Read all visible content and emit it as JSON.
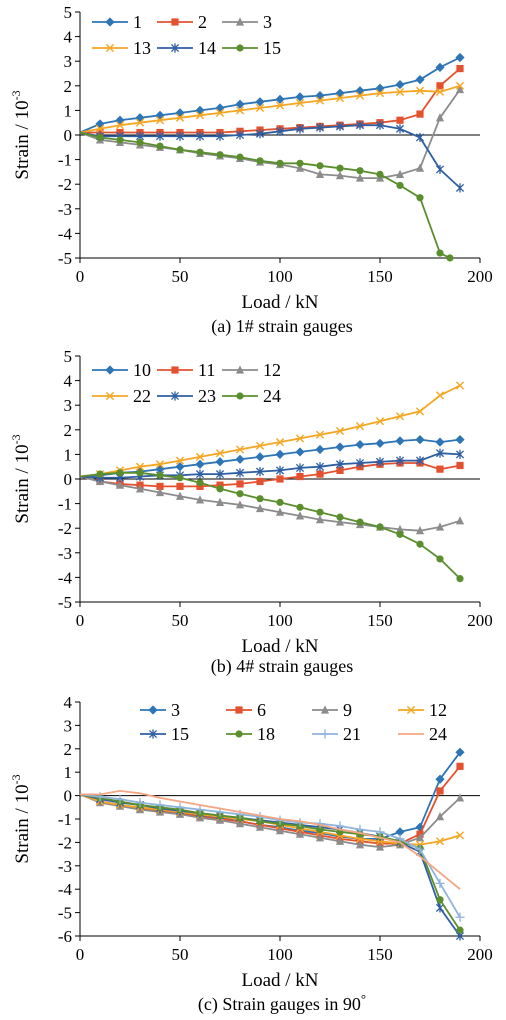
{
  "chart_data": [
    {
      "type": "line",
      "caption": "(a) 1# strain gauges",
      "xlabel": "Load / kN",
      "ylabel_main": "Strain / 10",
      "ylabel_exp": "-3",
      "xlim": [
        0,
        200
      ],
      "ylim": [
        -5,
        5
      ],
      "xticks": [
        0,
        50,
        100,
        150,
        200
      ],
      "yticks": [
        -5,
        -4,
        -3,
        -2,
        -1,
        0,
        1,
        2,
        3,
        4,
        5
      ],
      "legend_cols": 3,
      "grid": false,
      "series": [
        {
          "name": "1",
          "color": "#2e75b6",
          "marker": "diamond",
          "x": [
            0,
            10,
            20,
            30,
            40,
            50,
            60,
            70,
            80,
            90,
            100,
            110,
            120,
            130,
            140,
            150,
            160,
            170,
            180,
            190
          ],
          "y": [
            0.1,
            0.45,
            0.6,
            0.7,
            0.8,
            0.9,
            1.0,
            1.1,
            1.25,
            1.35,
            1.45,
            1.55,
            1.6,
            1.7,
            1.8,
            1.9,
            2.05,
            2.25,
            2.75,
            3.15
          ]
        },
        {
          "name": "2",
          "color": "#e4512f",
          "marker": "square",
          "x": [
            0,
            10,
            20,
            30,
            40,
            50,
            60,
            70,
            80,
            90,
            100,
            110,
            120,
            130,
            140,
            150,
            160,
            170,
            180,
            190
          ],
          "y": [
            0.1,
            0.1,
            0.1,
            0.1,
            0.1,
            0.1,
            0.1,
            0.1,
            0.15,
            0.2,
            0.25,
            0.3,
            0.35,
            0.4,
            0.45,
            0.5,
            0.6,
            0.85,
            2.0,
            2.7
          ]
        },
        {
          "name": "3",
          "color": "#8c8c8c",
          "marker": "triangle",
          "x": [
            0,
            10,
            20,
            30,
            40,
            50,
            60,
            70,
            80,
            90,
            100,
            110,
            120,
            130,
            140,
            150,
            160,
            170,
            180,
            190
          ],
          "y": [
            0.1,
            -0.2,
            -0.3,
            -0.4,
            -0.5,
            -0.6,
            -0.75,
            -0.85,
            -0.95,
            -1.1,
            -1.2,
            -1.35,
            -1.6,
            -1.65,
            -1.75,
            -1.75,
            -1.6,
            -1.35,
            0.7,
            1.85
          ]
        },
        {
          "name": "13",
          "color": "#f5a623",
          "marker": "x",
          "x": [
            0,
            10,
            20,
            30,
            40,
            50,
            60,
            70,
            80,
            90,
            100,
            110,
            120,
            130,
            140,
            150,
            160,
            170,
            180,
            190
          ],
          "y": [
            0.1,
            0.25,
            0.4,
            0.5,
            0.6,
            0.7,
            0.8,
            0.9,
            1.0,
            1.1,
            1.2,
            1.3,
            1.4,
            1.5,
            1.6,
            1.7,
            1.75,
            1.8,
            1.75,
            2.0
          ]
        },
        {
          "name": "14",
          "color": "#2e5fa3",
          "marker": "star",
          "x": [
            0,
            10,
            20,
            30,
            40,
            50,
            60,
            70,
            80,
            90,
            100,
            110,
            120,
            130,
            140,
            150,
            160,
            170,
            180,
            190
          ],
          "y": [
            0.1,
            -0.05,
            -0.05,
            -0.05,
            -0.05,
            -0.05,
            -0.05,
            -0.05,
            0.0,
            0.05,
            0.15,
            0.25,
            0.3,
            0.35,
            0.4,
            0.4,
            0.25,
            -0.1,
            -1.4,
            -2.15
          ]
        },
        {
          "name": "15",
          "color": "#5b8f2e",
          "marker": "circle",
          "x": [
            0,
            10,
            20,
            30,
            40,
            50,
            60,
            70,
            80,
            90,
            100,
            110,
            120,
            130,
            140,
            150,
            160,
            170,
            180,
            185
          ],
          "y": [
            0.1,
            -0.1,
            -0.2,
            -0.3,
            -0.45,
            -0.6,
            -0.7,
            -0.8,
            -0.9,
            -1.05,
            -1.15,
            -1.15,
            -1.25,
            -1.35,
            -1.45,
            -1.6,
            -2.05,
            -2.55,
            -4.8,
            -5.0
          ]
        }
      ]
    },
    {
      "type": "line",
      "caption": "(b) 4# strain gauges",
      "xlabel": "Load / kN",
      "ylabel_main": "Strain / 10",
      "ylabel_exp": "-3",
      "xlim": [
        0,
        200
      ],
      "ylim": [
        -5,
        5
      ],
      "xticks": [
        0,
        50,
        100,
        150,
        200
      ],
      "yticks": [
        -5,
        -4,
        -3,
        -2,
        -1,
        0,
        1,
        2,
        3,
        4,
        5
      ],
      "legend_cols": 3,
      "grid": false,
      "series": [
        {
          "name": "10",
          "color": "#2e75b6",
          "marker": "diamond",
          "x": [
            0,
            10,
            20,
            30,
            40,
            50,
            60,
            70,
            80,
            90,
            100,
            110,
            120,
            130,
            140,
            150,
            160,
            170,
            180,
            190
          ],
          "y": [
            0.1,
            0.15,
            0.25,
            0.3,
            0.4,
            0.5,
            0.6,
            0.7,
            0.8,
            0.9,
            1.0,
            1.1,
            1.2,
            1.3,
            1.4,
            1.45,
            1.55,
            1.6,
            1.5,
            1.6
          ]
        },
        {
          "name": "11",
          "color": "#e4512f",
          "marker": "square",
          "x": [
            0,
            10,
            20,
            30,
            40,
            50,
            60,
            70,
            80,
            90,
            100,
            110,
            120,
            130,
            140,
            150,
            160,
            170,
            180,
            190
          ],
          "y": [
            0.1,
            -0.1,
            -0.2,
            -0.25,
            -0.3,
            -0.3,
            -0.3,
            -0.25,
            -0.2,
            -0.1,
            0.0,
            0.1,
            0.2,
            0.35,
            0.5,
            0.6,
            0.65,
            0.65,
            0.4,
            0.55
          ]
        },
        {
          "name": "12",
          "color": "#8c8c8c",
          "marker": "triangle",
          "x": [
            0,
            10,
            20,
            30,
            40,
            50,
            60,
            70,
            80,
            90,
            100,
            110,
            120,
            130,
            140,
            150,
            160,
            170,
            180,
            190
          ],
          "y": [
            0.1,
            -0.1,
            -0.25,
            -0.4,
            -0.55,
            -0.7,
            -0.85,
            -0.95,
            -1.05,
            -1.2,
            -1.35,
            -1.5,
            -1.65,
            -1.75,
            -1.85,
            -1.95,
            -2.05,
            -2.1,
            -1.95,
            -1.7
          ]
        },
        {
          "name": "22",
          "color": "#f5a623",
          "marker": "x",
          "x": [
            0,
            10,
            20,
            30,
            40,
            50,
            60,
            70,
            80,
            90,
            100,
            110,
            120,
            130,
            140,
            150,
            160,
            170,
            180,
            190
          ],
          "y": [
            0.1,
            0.2,
            0.35,
            0.5,
            0.6,
            0.75,
            0.9,
            1.05,
            1.2,
            1.35,
            1.5,
            1.65,
            1.8,
            1.95,
            2.15,
            2.35,
            2.55,
            2.75,
            3.4,
            3.8
          ]
        },
        {
          "name": "23",
          "color": "#2e5fa3",
          "marker": "star",
          "x": [
            0,
            10,
            20,
            30,
            40,
            50,
            60,
            70,
            80,
            90,
            100,
            110,
            120,
            130,
            140,
            150,
            160,
            170,
            180,
            190
          ],
          "y": [
            0.1,
            0.05,
            0.05,
            0.1,
            0.15,
            0.15,
            0.2,
            0.2,
            0.25,
            0.3,
            0.35,
            0.45,
            0.5,
            0.6,
            0.65,
            0.7,
            0.75,
            0.75,
            1.05,
            1.0
          ]
        },
        {
          "name": "24",
          "color": "#5b8f2e",
          "marker": "circle",
          "x": [
            0,
            10,
            20,
            30,
            40,
            50,
            60,
            70,
            80,
            90,
            100,
            110,
            120,
            130,
            140,
            150,
            160,
            170,
            180,
            190
          ],
          "y": [
            0.1,
            0.2,
            0.25,
            0.25,
            0.15,
            0.05,
            -0.15,
            -0.4,
            -0.6,
            -0.8,
            -0.95,
            -1.15,
            -1.35,
            -1.55,
            -1.75,
            -1.95,
            -2.25,
            -2.65,
            -3.25,
            -4.05
          ]
        }
      ]
    },
    {
      "type": "line",
      "caption_main": "(c) Strain gauges in 90",
      "caption_sup": "°",
      "xlabel": "Load / kN",
      "ylabel_main": "Strain / 10",
      "ylabel_exp": "-3",
      "xlim": [
        0,
        200
      ],
      "ylim": [
        -6,
        4
      ],
      "xticks": [
        0,
        50,
        100,
        150,
        200
      ],
      "yticks": [
        -6,
        -5,
        -4,
        -3,
        -2,
        -1,
        0,
        1,
        2,
        3,
        4
      ],
      "legend_cols": 4,
      "grid": false,
      "series": [
        {
          "name": "3",
          "color": "#2e75b6",
          "marker": "diamond",
          "x": [
            0,
            10,
            20,
            30,
            40,
            50,
            60,
            70,
            80,
            90,
            100,
            110,
            120,
            130,
            140,
            150,
            160,
            170,
            180,
            190
          ],
          "y": [
            0.05,
            -0.25,
            -0.4,
            -0.55,
            -0.65,
            -0.75,
            -0.85,
            -0.95,
            -1.1,
            -1.25,
            -1.35,
            -1.5,
            -1.6,
            -1.75,
            -1.85,
            -1.85,
            -1.55,
            -1.35,
            0.7,
            1.85
          ]
        },
        {
          "name": "6",
          "color": "#e4512f",
          "marker": "square",
          "x": [
            0,
            10,
            20,
            30,
            40,
            50,
            60,
            70,
            80,
            90,
            100,
            110,
            120,
            130,
            140,
            150,
            160,
            170,
            180,
            190
          ],
          "y": [
            0.05,
            -0.25,
            -0.4,
            -0.55,
            -0.65,
            -0.75,
            -0.9,
            -1.0,
            -1.1,
            -1.25,
            -1.4,
            -1.55,
            -1.7,
            -1.85,
            -1.95,
            -2.05,
            -2.05,
            -1.65,
            0.2,
            1.25
          ]
        },
        {
          "name": "9",
          "color": "#8c8c8c",
          "marker": "triangle",
          "x": [
            0,
            10,
            20,
            30,
            40,
            50,
            60,
            70,
            80,
            90,
            100,
            110,
            120,
            130,
            140,
            150,
            160,
            170,
            180,
            190
          ],
          "y": [
            0.05,
            -0.3,
            -0.45,
            -0.6,
            -0.7,
            -0.8,
            -0.95,
            -1.05,
            -1.2,
            -1.35,
            -1.5,
            -1.65,
            -1.8,
            -1.95,
            -2.1,
            -2.2,
            -2.1,
            -1.8,
            -0.9,
            -0.1
          ]
        },
        {
          "name": "12",
          "color": "#f5a623",
          "marker": "x",
          "x": [
            0,
            10,
            20,
            30,
            40,
            50,
            60,
            70,
            80,
            90,
            100,
            110,
            120,
            130,
            140,
            150,
            160,
            170,
            180,
            190
          ],
          "y": [
            0.05,
            -0.25,
            -0.4,
            -0.5,
            -0.6,
            -0.7,
            -0.8,
            -0.9,
            -1.0,
            -1.1,
            -1.25,
            -1.4,
            -1.55,
            -1.7,
            -1.85,
            -1.95,
            -2.05,
            -2.1,
            -1.95,
            -1.7
          ]
        },
        {
          "name": "15",
          "color": "#2e5fa3",
          "marker": "star",
          "x": [
            0,
            10,
            20,
            30,
            40,
            50,
            60,
            70,
            80,
            90,
            100,
            110,
            120,
            130,
            140,
            150,
            160,
            170,
            180,
            190
          ],
          "y": [
            0.05,
            -0.15,
            -0.3,
            -0.4,
            -0.55,
            -0.65,
            -0.75,
            -0.85,
            -0.95,
            -1.05,
            -1.15,
            -1.25,
            -1.35,
            -1.45,
            -1.6,
            -1.75,
            -2.0,
            -2.4,
            -4.8,
            -6.0
          ]
        },
        {
          "name": "18",
          "color": "#5b8f2e",
          "marker": "circle",
          "x": [
            0,
            10,
            20,
            30,
            40,
            50,
            60,
            70,
            80,
            90,
            100,
            110,
            120,
            130,
            140,
            150,
            160,
            170,
            180,
            190
          ],
          "y": [
            0.05,
            -0.1,
            -0.25,
            -0.4,
            -0.5,
            -0.6,
            -0.75,
            -0.85,
            -0.95,
            -1.1,
            -1.2,
            -1.3,
            -1.45,
            -1.55,
            -1.65,
            -1.75,
            -1.95,
            -2.25,
            -4.45,
            -5.75
          ]
        },
        {
          "name": "21",
          "color": "#8fb4dc",
          "marker": "plus",
          "x": [
            0,
            10,
            20,
            30,
            40,
            50,
            60,
            70,
            80,
            90,
            100,
            110,
            120,
            130,
            140,
            150,
            160,
            170,
            180,
            190
          ],
          "y": [
            0.05,
            -0.05,
            -0.15,
            -0.3,
            -0.4,
            -0.5,
            -0.6,
            -0.7,
            -0.8,
            -0.9,
            -1.05,
            -1.15,
            -1.2,
            -1.3,
            -1.45,
            -1.55,
            -1.85,
            -2.3,
            -3.75,
            -5.2
          ]
        },
        {
          "name": "24",
          "color": "#f4a582",
          "marker": "none",
          "x": [
            0,
            10,
            20,
            30,
            40,
            50,
            60,
            70,
            80,
            90,
            100,
            110,
            120,
            130,
            140,
            150,
            160,
            170,
            180,
            190
          ],
          "y": [
            0.05,
            0.05,
            0.2,
            0.1,
            -0.1,
            -0.25,
            -0.4,
            -0.55,
            -0.7,
            -0.85,
            -1.0,
            -1.1,
            -1.25,
            -1.45,
            -1.6,
            -1.8,
            -2.0,
            -2.6,
            -3.3,
            -4.0
          ]
        }
      ]
    }
  ]
}
